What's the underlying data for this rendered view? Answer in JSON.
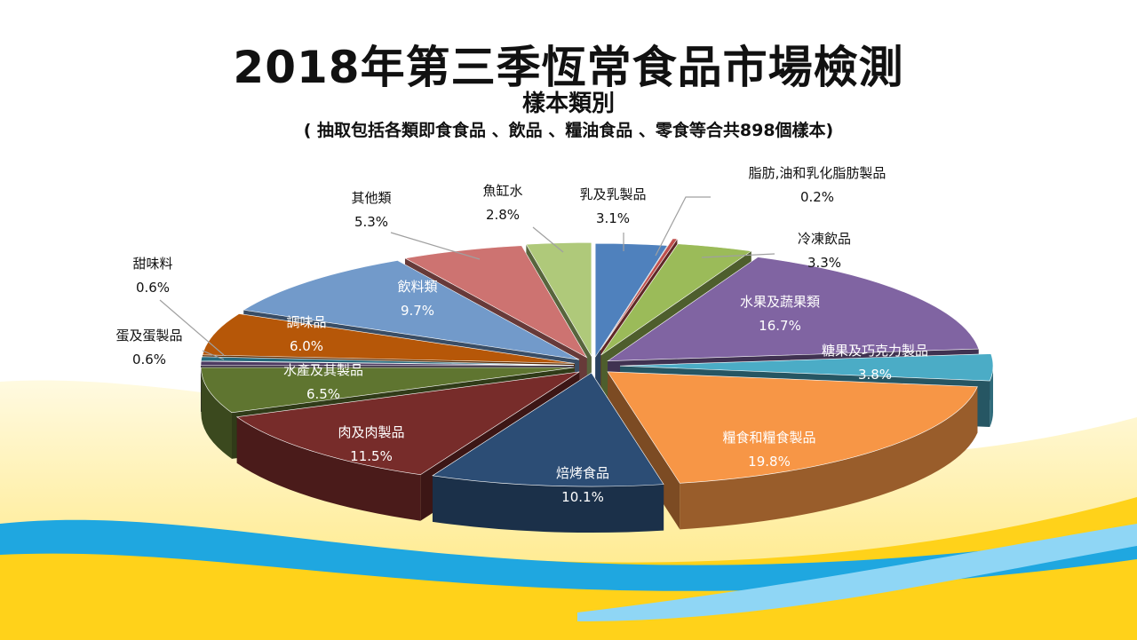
{
  "title": "2018年第三季恆常食品市場檢測",
  "subtitle": "樣本類別",
  "note": "( 抽取包括各類即食食品 、飲品 、糧油食品 、零食等合共898個樣本)",
  "chart_data": {
    "type": "pie",
    "title": "2018年第三季恆常食品市場檢測",
    "subtitle": "樣本類別",
    "slices": [
      {
        "name": "乳及乳製品",
        "value": 3.1,
        "label": "3.1%",
        "color": "#4f81bd"
      },
      {
        "name": "脂肪,油和乳化脂肪製品",
        "value": 0.2,
        "label": "0.2%",
        "color": "#c0504d"
      },
      {
        "name": "冷凍飲品",
        "value": 3.3,
        "label": "3.3%",
        "color": "#9bbb59"
      },
      {
        "name": "水果及蔬果類",
        "value": 16.7,
        "label": "16.7%",
        "color": "#8064a2"
      },
      {
        "name": "糖果及巧克力製品",
        "value": 3.8,
        "label": "3.8%",
        "color": "#4bacc6"
      },
      {
        "name": "糧食和糧食製品",
        "value": 19.8,
        "label": "19.8%",
        "color": "#f79646"
      },
      {
        "name": "焙烤食品",
        "value": 10.1,
        "label": "10.1%",
        "color": "#2c4d75"
      },
      {
        "name": "肉及肉製品",
        "value": 11.5,
        "label": "11.5%",
        "color": "#772c2a"
      },
      {
        "name": "水產及其製品",
        "value": 6.5,
        "label": "6.5%",
        "color": "#5f7530"
      },
      {
        "name": "蛋及蛋製品",
        "value": 0.6,
        "label": "0.6%",
        "color": "#4d3b62"
      },
      {
        "name": "甜味料",
        "value": 0.6,
        "label": "0.6%",
        "color": "#276a7c"
      },
      {
        "name": "調味品",
        "value": 6.0,
        "label": "6.0%",
        "color": "#b65708"
      },
      {
        "name": "飲料類",
        "value": 9.7,
        "label": "9.7%",
        "color": "#729aca"
      },
      {
        "name": "其他類",
        "value": 5.3,
        "label": "5.3%",
        "color": "#cd7371"
      },
      {
        "name": "魚缸水",
        "value": 2.8,
        "label": "2.8%",
        "color": "#afc97a"
      }
    ]
  }
}
